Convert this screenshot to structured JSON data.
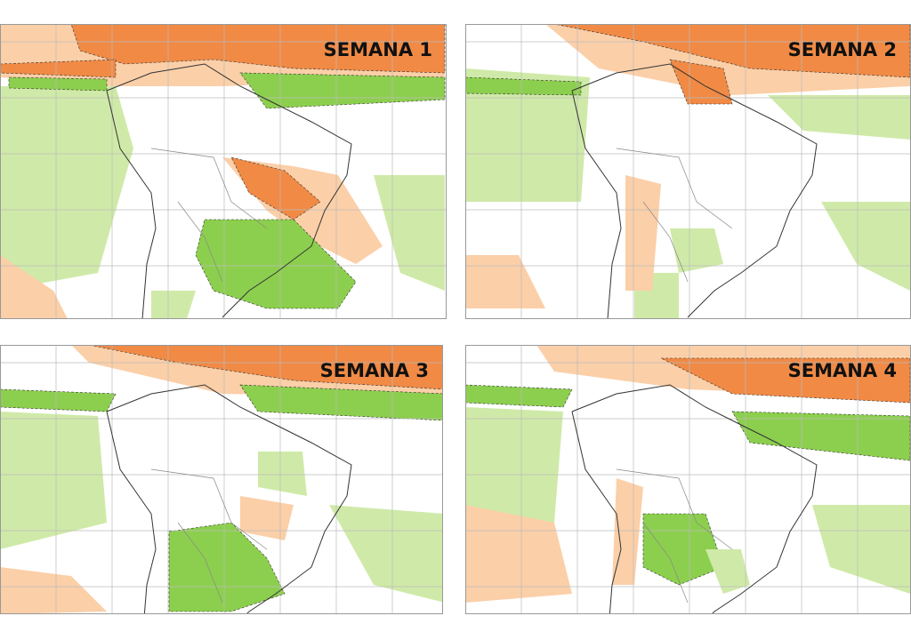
{
  "panels": [
    {
      "label": "SEMANA 1"
    },
    {
      "label": "SEMANA 2"
    },
    {
      "label": "SEMANA 3"
    },
    {
      "label": "SEMANA 4"
    }
  ]
}
